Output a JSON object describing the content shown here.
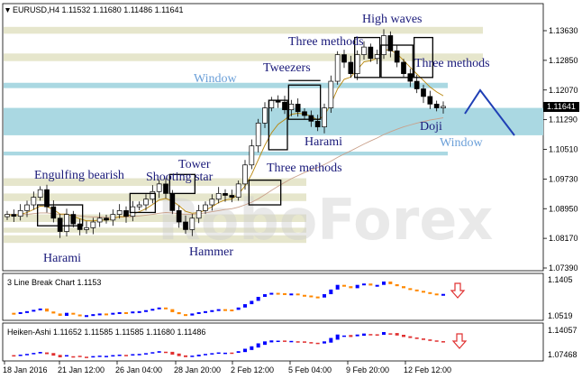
{
  "chart_data": {
    "type": "candlestick",
    "symbol_header": "EURUSD,H4  1.11532 1.11680 1.11486 1.11641",
    "watermark": "RoboForex",
    "y_ticks": [
      "1.13630",
      "1.12850",
      "1.12070",
      "1.11290",
      "1.10510",
      "1.09730",
      "1.08950",
      "1.08170",
      "1.07390"
    ],
    "last_price": "1.11641",
    "x_ticks": [
      "18 Jan 2016",
      "21 Jan 12:00",
      "26 Jan 04:00",
      "28 Jan 20:00",
      "2 Feb 12:00",
      "5 Feb 04:00",
      "9 Feb 20:00",
      "12 Feb 12:00"
    ],
    "closes": [
      1.088,
      1.0875,
      1.089,
      1.0905,
      1.0925,
      1.0945,
      1.09,
      1.087,
      1.0835,
      1.088,
      1.0855,
      1.084,
      1.0845,
      1.086,
      1.087,
      1.0865,
      1.088,
      1.089,
      1.0875,
      1.09,
      1.0905,
      1.092,
      1.094,
      1.096,
      1.0935,
      1.089,
      1.086,
      1.084,
      1.087,
      1.089,
      1.0905,
      1.092,
      1.0935,
      1.093,
      1.0925,
      1.096,
      1.101,
      1.106,
      1.112,
      1.116,
      1.118,
      1.1175,
      1.1155,
      1.117,
      1.115,
      1.114,
      1.1125,
      1.111,
      1.116,
      1.123,
      1.13,
      1.128,
      1.125,
      1.13,
      1.132,
      1.129,
      1.13,
      1.135,
      1.131,
      1.128,
      1.125,
      1.123,
      1.121,
      1.119,
      1.117,
      1.116,
      1.1164
    ],
    "ma_slow": [
      1.088,
      1.0879,
      1.0879,
      1.088,
      1.0882,
      1.0884,
      1.0884,
      1.0882,
      1.088,
      1.0879,
      1.0878,
      1.0876,
      1.0874,
      1.0873,
      1.0873,
      1.0872,
      1.0872,
      1.0873,
      1.0873,
      1.0874,
      1.0876,
      1.0878,
      1.088,
      1.0883,
      1.0885,
      1.0884,
      1.0882,
      1.088,
      1.088,
      1.0882,
      1.0884,
      1.0887,
      1.089,
      1.0893,
      1.0895,
      1.0899,
      1.0905,
      1.0912,
      1.0921,
      1.0932,
      1.0943,
      1.0954,
      1.0964,
      1.0974,
      1.0982,
      1.099,
      1.0997,
      1.1003,
      1.1011,
      1.102,
      1.103,
      1.1039,
      1.1047,
      1.1056,
      1.1065,
      1.1073,
      1.1081,
      1.109,
      1.1097,
      1.1104,
      1.111,
      1.1115,
      1.112,
      1.1124,
      1.1128,
      1.1131,
      1.1134
    ],
    "ma_fast": [
      1.088,
      1.0878,
      1.088,
      1.0885,
      1.0893,
      1.0902,
      1.09,
      1.0893,
      1.0881,
      1.0881,
      1.0875,
      1.0868,
      1.0863,
      1.0863,
      1.0865,
      1.0865,
      1.0869,
      1.0874,
      1.0874,
      1.0881,
      1.0887,
      1.0895,
      1.0906,
      1.0918,
      1.0922,
      1.0915,
      1.0903,
      1.0888,
      1.0883,
      1.0885,
      1.0891,
      1.09,
      1.0911,
      1.0918,
      1.0921,
      1.0933,
      1.0955,
      1.0985,
      1.1024,
      1.1062,
      1.1094,
      1.1117,
      1.1129,
      1.1143,
      1.1146,
      1.1144,
      1.1138,
      1.1128,
      1.114,
      1.117,
      1.121,
      1.1235,
      1.1241,
      1.1261,
      1.1281,
      1.1284,
      1.1291,
      1.1313,
      1.1312,
      1.1302,
      1.1285,
      1.1267,
      1.1249,
      1.1232,
      1.1215,
      1.1202,
      1.1192
    ],
    "patterns": [
      {
        "label": "High waves",
        "x_index": 59,
        "price": 1.139
      },
      {
        "label": "Three methods",
        "x_index": 47,
        "price": 1.1345
      },
      {
        "label": "Three methods",
        "x_index": 64,
        "price": 1.127
      },
      {
        "label": "Tweezers",
        "x_index": 43,
        "price": 1.126
      },
      {
        "label": "Window",
        "x_index": 32,
        "price": 1.1212
      },
      {
        "label": "Doji",
        "x_index": 63,
        "price": 1.1095
      },
      {
        "label": "Window",
        "x_index": 67,
        "price": 1.1055
      },
      {
        "label": "Harami",
        "x_index": 48,
        "price": 1.106
      },
      {
        "label": "Three methods",
        "x_index": 45,
        "price": 1.0985
      },
      {
        "label": "Tower",
        "x_index": 26,
        "price": 1.099
      },
      {
        "label": "Engulfing bearish",
        "x_index": 11,
        "price": 1.0968
      },
      {
        "label": "Shooting star",
        "x_index": 27,
        "price": 1.0968
      },
      {
        "label": "Harami",
        "x_index": 9,
        "price": 1.077
      },
      {
        "label": "Hammer",
        "x_index": 30,
        "price": 1.0785
      }
    ],
    "sub1": {
      "label": "3 Line Break Chart 1.1153",
      "y_ticks": [
        "1.1405",
        "1.0519"
      ]
    },
    "sub2": {
      "label": "Heiken-Ashi 1.11652 1.11585 1.11585 1.11680 1.11486",
      "y_ticks": [
        "1.14057",
        "1.07468"
      ]
    },
    "colors": {
      "support_zone": "#e6e6cc",
      "window_zone": "#aad8e2",
      "up": "#0000ff",
      "down": "#ff8800",
      "arrow_blue": "#1f3fb5",
      "arrow_red": "#e03030"
    }
  }
}
